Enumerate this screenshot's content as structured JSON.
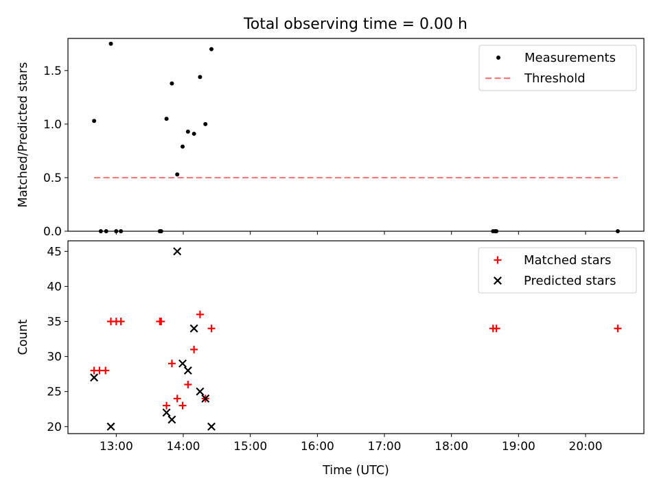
{
  "figure": {
    "title": "Total observing time = 0.00 h"
  },
  "chart_data": [
    {
      "type": "scatter",
      "name": "ratio-panel",
      "ylabel": "Matched/Predicted stars",
      "ylim": [
        0,
        1.8
      ],
      "xlim": [
        12.28,
        20.87
      ],
      "yticks": [
        0.0,
        0.5,
        1.0,
        1.5
      ],
      "ytick_labels": [
        "0.0",
        "0.5",
        "1.0",
        "1.5"
      ],
      "legend_position": "top-right",
      "series": [
        {
          "name": "Measurements",
          "type": "scatter",
          "marker": "dot",
          "color": "#000000",
          "x": [
            12.67,
            12.92,
            13.83,
            13.75,
            14.25,
            14.42,
            14.07,
            14.33,
            14.16,
            13.99,
            13.91,
            12.77,
            12.85,
            13.0,
            13.07,
            13.65,
            13.67,
            18.62,
            18.65,
            18.67,
            20.48
          ],
          "y": [
            1.03,
            1.75,
            1.38,
            1.05,
            1.44,
            1.7,
            0.93,
            1.0,
            0.91,
            0.79,
            0.53,
            0.0,
            0.0,
            0.0,
            0.0,
            0.0,
            0.0,
            0.0,
            0.0,
            0.0,
            0.0
          ]
        },
        {
          "name": "Threshold",
          "type": "line",
          "style": "dashed",
          "color": "#ff7777",
          "x": [
            12.67,
            20.48
          ],
          "y": [
            0.5,
            0.5
          ]
        }
      ]
    },
    {
      "type": "scatter",
      "name": "count-panel",
      "xlabel": "Time (UTC)",
      "ylabel": "Count",
      "ylim": [
        19,
        46.5
      ],
      "xlim": [
        12.28,
        20.87
      ],
      "yticks": [
        20,
        25,
        30,
        35,
        40,
        45
      ],
      "ytick_labels": [
        "20",
        "25",
        "30",
        "35",
        "40",
        "45"
      ],
      "xticks": [
        13,
        14,
        15,
        16,
        17,
        18,
        19,
        20
      ],
      "xtick_labels": [
        "13:00",
        "14:00",
        "15:00",
        "16:00",
        "17:00",
        "18:00",
        "19:00",
        "20:00"
      ],
      "legend_position": "top-right",
      "series": [
        {
          "name": "Matched stars",
          "type": "scatter",
          "marker": "plus",
          "color": "#ff0000",
          "x": [
            12.67,
            12.75,
            12.84,
            12.92,
            13.0,
            13.07,
            13.65,
            13.67,
            13.75,
            13.83,
            13.91,
            13.99,
            14.07,
            14.16,
            14.25,
            14.33,
            14.42,
            18.62,
            18.67,
            20.48
          ],
          "y": [
            28,
            28,
            28,
            35,
            35,
            35,
            35,
            35,
            23,
            29,
            24,
            23,
            26,
            31,
            36,
            24,
            34,
            34,
            34,
            34
          ]
        },
        {
          "name": "Predicted stars",
          "type": "scatter",
          "marker": "x",
          "color": "#000000",
          "x": [
            12.67,
            12.92,
            13.75,
            13.83,
            13.91,
            13.99,
            14.07,
            14.16,
            14.25,
            14.33,
            14.42
          ],
          "y": [
            27,
            20,
            22,
            21,
            45,
            29,
            28,
            34,
            25,
            24,
            20
          ]
        }
      ]
    }
  ]
}
